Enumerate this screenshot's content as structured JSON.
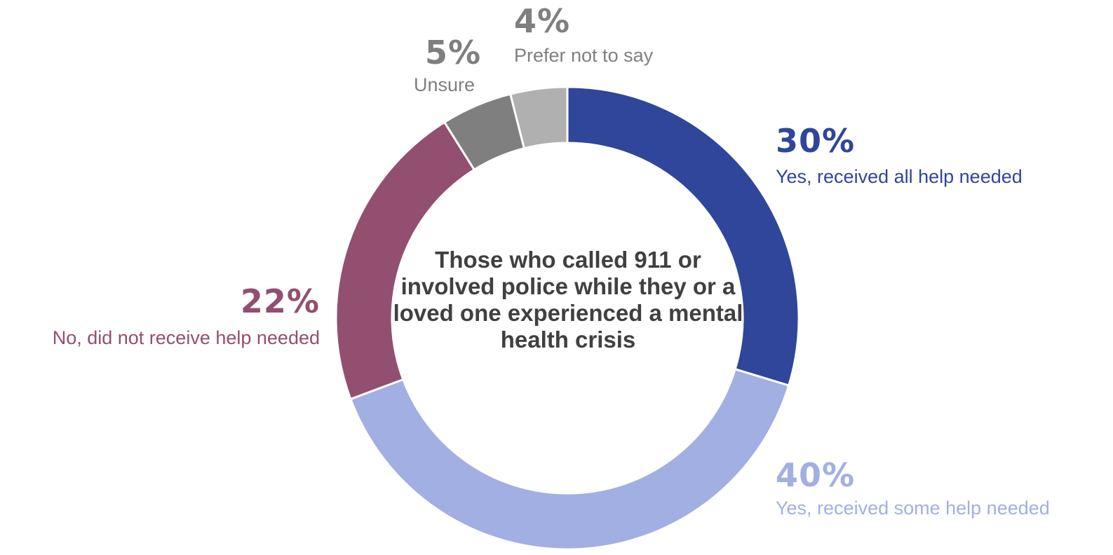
{
  "chart_data": {
    "type": "pie",
    "variant": "donut",
    "center_label": "Those who called 911 or involved police while they or a loved one experienced a mental health crisis",
    "slices": [
      {
        "name": "Yes, received all help needed",
        "value": 30,
        "label": "30%",
        "color": "#30469a"
      },
      {
        "name": "Yes, received some help needed",
        "value": 40,
        "label": "40%",
        "color": "#a2afe2"
      },
      {
        "name": "No, did not receive help needed",
        "value": 22,
        "label": "22%",
        "color": "#924f70"
      },
      {
        "name": "Unsure",
        "value": 5,
        "label": "5%",
        "color": "#7f7f7f"
      },
      {
        "name": "Prefer not to say",
        "value": 4,
        "label": "4%",
        "color": "#b0b0b0"
      }
    ],
    "label_colors": {
      "prefer_not_to_say": "#7f7f7f",
      "unsure": "#7f7f7f"
    }
  }
}
